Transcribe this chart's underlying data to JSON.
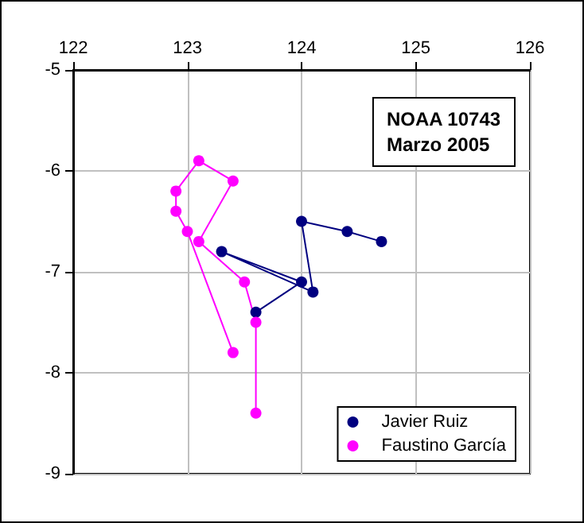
{
  "chart_data": {
    "type": "line",
    "annotations": [
      "NOAA 10743\nMarzo 2005"
    ],
    "xlim": [
      122,
      126
    ],
    "xticks": [
      122,
      123,
      124,
      125,
      126
    ],
    "ylim": [
      -9,
      -5
    ],
    "yticks": [
      -9,
      -8,
      -7,
      -6,
      -5
    ],
    "grid": true,
    "legend": "bottom right",
    "marker": "circle",
    "line_style": "solid",
    "series": [
      {
        "name": "Javier Ruiz",
        "color": "#000080",
        "x": [
          124.7,
          124.4,
          124.0,
          124.1,
          123.3,
          124.0,
          123.6
        ],
        "values": [
          -6.7,
          -6.6,
          -6.5,
          -7.2,
          -6.8,
          -7.1,
          -7.4
        ]
      },
      {
        "name": "Faustino García",
        "color": "#ff00ff",
        "x": [
          123.6,
          123.6,
          123.5,
          123.1,
          123.4,
          123.1,
          122.9,
          122.9,
          123.0,
          123.4
        ],
        "values": [
          -8.4,
          -7.5,
          -7.1,
          -6.7,
          -6.1,
          -5.9,
          -6.2,
          -6.4,
          -6.6,
          -7.8
        ]
      }
    ]
  }
}
